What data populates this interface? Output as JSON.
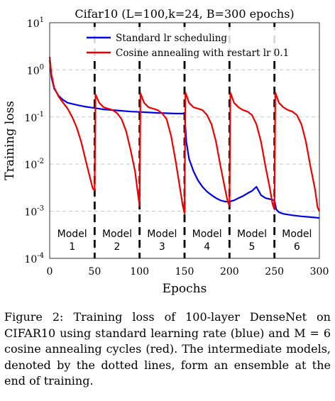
{
  "chart_data": {
    "type": "line",
    "title": "Cifar10 (L=100,k=24, B=300 epochs)",
    "xlabel": "Epochs",
    "ylabel": "Training loss",
    "xlim": [
      0,
      300
    ],
    "ylim": [
      0.0001,
      10
    ],
    "yscale": "log",
    "grid": true,
    "legend_position": "top",
    "x_ticks": [
      "0",
      "50",
      "100",
      "150",
      "200",
      "250",
      "300"
    ],
    "y_ticks": [
      {
        "base": "10",
        "exp": "1",
        "value": 10
      },
      {
        "base": "10",
        "exp": "0",
        "value": 1
      },
      {
        "base": "10",
        "exp": "-1",
        "value": 0.1
      },
      {
        "base": "10",
        "exp": "-2",
        "value": 0.01
      },
      {
        "base": "10",
        "exp": "-3",
        "value": 0.001
      },
      {
        "base": "10",
        "exp": "-4",
        "value": 0.0001
      }
    ],
    "series": [
      {
        "name": "Standard lr scheduling",
        "color": "#0000ee",
        "x": [
          0,
          2,
          5,
          10,
          15,
          20,
          30,
          40,
          50,
          60,
          70,
          80,
          90,
          100,
          110,
          120,
          130,
          140,
          150,
          152,
          155,
          160,
          165,
          170,
          175,
          180,
          185,
          190,
          195,
          200,
          205,
          210,
          215,
          220,
          225,
          230,
          235,
          240,
          245,
          250,
          252,
          255,
          260,
          270,
          280,
          290,
          300
        ],
        "y": [
          1.6,
          0.7,
          0.4,
          0.28,
          0.23,
          0.2,
          0.18,
          0.165,
          0.155,
          0.145,
          0.14,
          0.135,
          0.13,
          0.128,
          0.125,
          0.122,
          0.12,
          0.118,
          0.118,
          0.03,
          0.013,
          0.007,
          0.0045,
          0.0033,
          0.0026,
          0.0022,
          0.0019,
          0.0017,
          0.0016,
          0.0016,
          0.0017,
          0.0019,
          0.0021,
          0.0024,
          0.0027,
          0.0033,
          0.0022,
          0.0019,
          0.0018,
          0.0017,
          0.0011,
          0.00095,
          0.00088,
          0.00082,
          0.00078,
          0.00075,
          0.00072
        ]
      },
      {
        "name": "Cosine annealing with restart lr 0.1",
        "color": "#ee0000",
        "x": [
          0,
          2,
          5,
          10,
          15,
          20,
          25,
          30,
          35,
          40,
          45,
          48,
          50,
          51,
          55,
          60,
          65,
          70,
          75,
          80,
          85,
          90,
          95,
          98,
          100,
          101,
          105,
          110,
          115,
          120,
          125,
          130,
          135,
          140,
          145,
          148,
          150,
          151,
          155,
          160,
          165,
          170,
          175,
          180,
          185,
          190,
          195,
          198,
          200,
          201,
          205,
          210,
          215,
          220,
          225,
          230,
          235,
          240,
          245,
          248,
          250,
          251,
          255,
          260,
          265,
          270,
          275,
          280,
          285,
          290,
          295,
          298,
          300
        ],
        "y": [
          1.9,
          0.8,
          0.42,
          0.27,
          0.2,
          0.15,
          0.1,
          0.06,
          0.03,
          0.012,
          0.005,
          0.003,
          0.0028,
          0.3,
          0.2,
          0.16,
          0.15,
          0.14,
          0.12,
          0.09,
          0.05,
          0.02,
          0.007,
          0.0025,
          0.0013,
          0.32,
          0.2,
          0.16,
          0.15,
          0.14,
          0.12,
          0.09,
          0.04,
          0.012,
          0.003,
          0.0013,
          0.0009,
          0.33,
          0.2,
          0.16,
          0.15,
          0.14,
          0.11,
          0.07,
          0.03,
          0.009,
          0.003,
          0.0016,
          0.0013,
          0.33,
          0.2,
          0.16,
          0.14,
          0.13,
          0.11,
          0.07,
          0.03,
          0.009,
          0.003,
          0.0014,
          0.0011,
          0.33,
          0.2,
          0.16,
          0.14,
          0.13,
          0.11,
          0.07,
          0.03,
          0.009,
          0.003,
          0.0012,
          0.001
        ]
      }
    ],
    "cycle_boundaries": [
      50,
      100,
      150,
      200,
      250
    ],
    "models": [
      {
        "name": "Model",
        "number": "1",
        "x": 25
      },
      {
        "name": "Model",
        "number": "2",
        "x": 75
      },
      {
        "name": "Model",
        "number": "3",
        "x": 125
      },
      {
        "name": "Model",
        "number": "4",
        "x": 175
      },
      {
        "name": "Model",
        "number": "5",
        "x": 225
      },
      {
        "name": "Model",
        "number": "6",
        "x": 275
      }
    ]
  },
  "caption": {
    "label": "Figure 2:",
    "text": "Training loss of 100-layer DenseNet on CIFAR10 using standard learning rate (blue) and M = 6 cosine annealing cycles (red). The intermediate models, denoted by the dotted lines, form an ensemble at the end of training."
  }
}
